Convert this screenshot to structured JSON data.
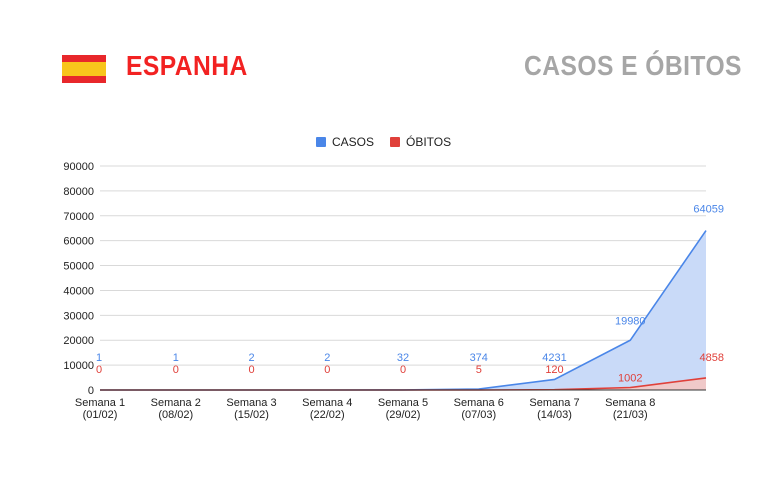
{
  "header": {
    "country": "ESPANHA",
    "section": "CASOS E ÓBITOS"
  },
  "colors": {
    "casos": "#4a86e8",
    "casos_fill": "#c9daf8",
    "obitos": "#e0403a",
    "obitos_fill": "#f4c7c3",
    "title_red": "#f22222",
    "title_gray": "#a6a6a6"
  },
  "chart_data": {
    "type": "area",
    "categories": [
      [
        "Semana 1",
        "(01/02)"
      ],
      [
        "Semana 2",
        "(08/02)"
      ],
      [
        "Semana 3",
        "(15/02)"
      ],
      [
        "Semana 4",
        "(22/02)"
      ],
      [
        "Semana 5",
        "(29/02)"
      ],
      [
        "Semana 6",
        "(07/03)"
      ],
      [
        "Semana 7",
        "(14/03)"
      ],
      [
        "Semana 8",
        "(21/03)"
      ],
      [
        "",
        ""
      ]
    ],
    "series": [
      {
        "name": "CASOS",
        "values": [
          1,
          1,
          2,
          2,
          32,
          374,
          4231,
          19980,
          64059
        ]
      },
      {
        "name": "ÓBITOS",
        "values": [
          0,
          0,
          0,
          0,
          0,
          5,
          120,
          1002,
          4858
        ]
      }
    ],
    "ylim": [
      0,
      90000
    ],
    "yticks": [
      0,
      10000,
      20000,
      30000,
      40000,
      50000,
      60000,
      70000,
      80000,
      90000
    ],
    "grid": true,
    "legend_position": "top-center",
    "data_labels": true
  }
}
